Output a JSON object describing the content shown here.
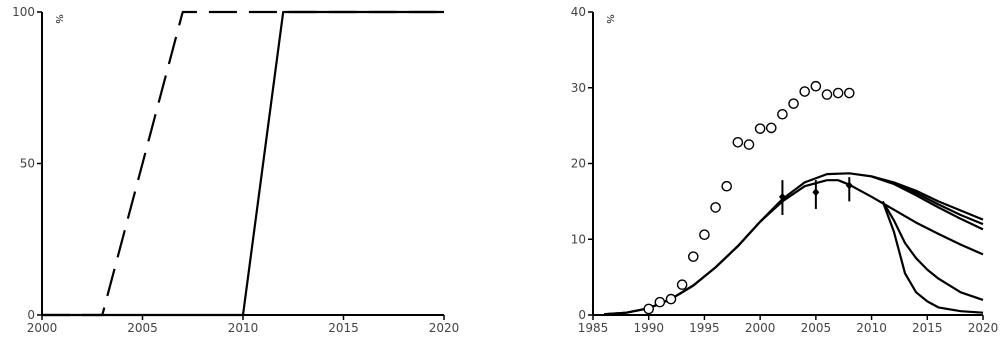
{
  "chart_data": [
    {
      "type": "line",
      "title": "",
      "xlabel": "",
      "ylabel": "",
      "unit_label": "%",
      "xlim": [
        2000,
        2020
      ],
      "ylim": [
        0,
        100
      ],
      "x_ticks": [
        2000,
        2005,
        2010,
        2015,
        2020
      ],
      "y_ticks": [
        0,
        50,
        100
      ],
      "series": [
        {
          "style": "dashed",
          "color": "#000000",
          "x": [
            2000,
            2003,
            2007,
            2020
          ],
          "y": [
            0,
            0,
            100,
            100
          ]
        },
        {
          "style": "solid",
          "color": "#000000",
          "x": [
            2000,
            2010,
            2012,
            2020
          ],
          "y": [
            0,
            0,
            100,
            100
          ]
        }
      ]
    },
    {
      "type": "line",
      "title": "",
      "xlabel": "",
      "ylabel": "",
      "unit_label": "%",
      "xlim": [
        1985,
        2020
      ],
      "ylim": [
        0,
        40
      ],
      "x_ticks": [
        1985,
        1990,
        1995,
        2000,
        2005,
        2010,
        2015,
        2020
      ],
      "y_ticks": [
        0,
        10,
        20,
        30,
        40
      ],
      "series": [
        {
          "style": "solid",
          "color": "#000000",
          "x": [
            1986,
            1988,
            1990,
            1992,
            1994,
            1996,
            1998,
            2000,
            2002,
            2004,
            2006,
            2008,
            2010,
            2012,
            2014,
            2016,
            2018,
            2020
          ],
          "y": [
            0.1,
            0.3,
            0.9,
            2.1,
            3.9,
            6.3,
            9.1,
            12.3,
            15.3,
            17.5,
            18.6,
            18.7,
            18.3,
            17.5,
            16.4,
            15.0,
            13.8,
            12.6
          ]
        },
        {
          "style": "solid",
          "color": "#000000",
          "x": [
            2010,
            2012,
            2014,
            2016,
            2018,
            2020
          ],
          "y": [
            18.3,
            17.4,
            16.1,
            14.6,
            13.2,
            12.0
          ]
        },
        {
          "style": "solid",
          "color": "#000000",
          "x": [
            2010,
            2012,
            2014,
            2016,
            2018,
            2020
          ],
          "y": [
            18.3,
            17.3,
            15.8,
            14.2,
            12.7,
            11.3
          ]
        },
        {
          "style": "solid",
          "color": "#000000",
          "x": [
            1986,
            1988,
            1990,
            1992,
            1994,
            1996,
            1998,
            2000,
            2002,
            2004,
            2006,
            2007,
            2008,
            2010,
            2012,
            2014,
            2016,
            2018,
            2020
          ],
          "y": [
            0.1,
            0.3,
            0.9,
            2.1,
            3.9,
            6.3,
            9.1,
            12.3,
            15.0,
            17.0,
            17.8,
            17.8,
            17.2,
            15.6,
            13.9,
            12.2,
            10.7,
            9.3,
            8.0
          ]
        },
        {
          "style": "solid",
          "color": "#000000",
          "x": [
            2011,
            2012,
            2013,
            2014,
            2015,
            2016,
            2018,
            2020
          ],
          "y": [
            15.0,
            12.5,
            9.5,
            7.5,
            6.0,
            4.8,
            3.0,
            2.0
          ]
        },
        {
          "style": "solid",
          "color": "#000000",
          "x": [
            2011,
            2012,
            2013,
            2014,
            2015,
            2016,
            2018,
            2020
          ],
          "y": [
            15.0,
            11.0,
            5.5,
            3.0,
            1.8,
            1.0,
            0.5,
            0.3
          ]
        }
      ],
      "markers_circle": {
        "x": [
          1990,
          1991,
          1992,
          1993,
          1994,
          1995,
          1996,
          1997,
          1998,
          1999,
          2000,
          2001,
          2002,
          2003,
          2004,
          2005,
          2006,
          2007,
          2008
        ],
        "y": [
          0.8,
          1.7,
          2.1,
          4.0,
          7.7,
          10.6,
          14.2,
          17.0,
          22.8,
          22.5,
          24.6,
          24.7,
          26.5,
          27.9,
          29.5,
          30.2,
          29.1,
          29.3,
          29.3
        ]
      },
      "markers_errorbar": {
        "x": [
          2002,
          2005,
          2008
        ],
        "y": [
          15.6,
          16.2,
          17.1
        ],
        "low": [
          13.2,
          14.0,
          15.0
        ],
        "high": [
          17.8,
          17.8,
          18.2
        ]
      }
    }
  ]
}
